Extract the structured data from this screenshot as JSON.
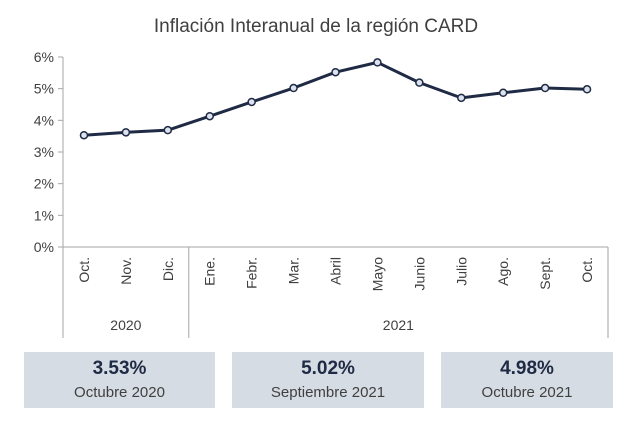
{
  "chart_data": {
    "type": "line",
    "title": "Inflación Interanual de la región CARD",
    "categories": [
      "Oct.",
      "Nov.",
      "Dic.",
      "Ene.",
      "Febr.",
      "Mar.",
      "Abril",
      "Mayo",
      "Junio",
      "Julio",
      "Ago.",
      "Sept.",
      "Oct."
    ],
    "year_groups": [
      {
        "label": "2020",
        "count": 3
      },
      {
        "label": "2021",
        "count": 10
      }
    ],
    "series": [
      {
        "values": [
          3.53,
          3.62,
          3.69,
          4.13,
          4.58,
          5.02,
          5.52,
          5.83,
          5.19,
          4.71,
          4.87,
          5.02,
          4.98
        ]
      }
    ],
    "ylim": [
      0,
      6
    ],
    "yticks": [
      0,
      1,
      2,
      3,
      4,
      5,
      6
    ],
    "ytick_labels": [
      "0%",
      "1%",
      "2%",
      "3%",
      "4%",
      "5%",
      "6%"
    ],
    "xlabel": "",
    "ylabel": "",
    "grid": false,
    "line_color": "#1f2a44",
    "marker_fill": "#dce3ee"
  },
  "summary_cards": [
    {
      "value": "3.53%",
      "label": "Octubre 2020"
    },
    {
      "value": "5.02%",
      "label": "Septiembre 2021"
    },
    {
      "value": "4.98%",
      "label": "Octubre 2021"
    }
  ],
  "colors": {
    "card_background": "#d6dce4",
    "card_value": "#1f2a44"
  }
}
